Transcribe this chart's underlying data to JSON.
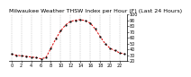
{
  "title": "Milwaukee Weather THSW Index per Hour (F) (Last 24 Hours)",
  "hours": [
    0,
    1,
    2,
    3,
    4,
    5,
    6,
    7,
    8,
    9,
    10,
    11,
    12,
    13,
    14,
    15,
    16,
    17,
    18,
    19,
    20,
    21,
    22,
    23
  ],
  "values": [
    32,
    30,
    29,
    28,
    27,
    26,
    24,
    26,
    42,
    58,
    72,
    82,
    88,
    90,
    91,
    89,
    85,
    75,
    62,
    50,
    42,
    38,
    34,
    32
  ],
  "line_color": "#dd0000",
  "dot_color": "#000000",
  "bg_color": "#ffffff",
  "plot_bg": "#ffffff",
  "grid_color": "#999999",
  "ylim_min": 20,
  "ylim_max": 100,
  "yticks": [
    20,
    30,
    40,
    50,
    60,
    70,
    80,
    90,
    100
  ],
  "title_fontsize": 4.5,
  "tick_fontsize": 3.5,
  "line_width": 0.7,
  "marker_size": 1.2
}
